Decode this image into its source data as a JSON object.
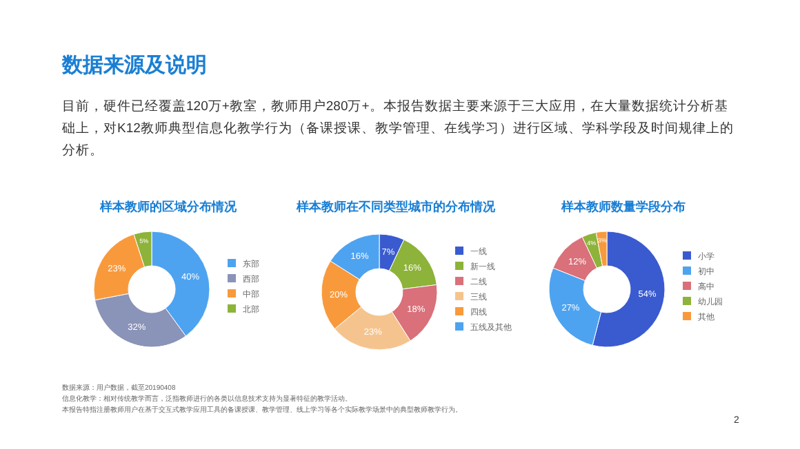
{
  "chart_data": [
    {
      "type": "other",
      "title": "数据来源及说明",
      "annotations": [
        "目前，硬件已经覆盖120万+教室，教师用户280万+。本报告数据主要来源于三大应用，在大量数据统计分析基础上，对K12教师典型信息化教学行为（备课授课、教学管理、在线学习）进行区域、学科学段及时间规律上的分析。",
        "数据来源：用户数据，截至20190408",
        "信息化教学：相对传统教学而言，泛指教师进行的各类以信息技术支持为显著特征的教学活动。",
        "本报告特指注册教师用户在基于交互式教学应用工具的备课授课、教学管理、线上学习等各个实际教学场景中的典型教师教学行为。",
        "2"
      ]
    },
    {
      "type": "donut",
      "title": "样本教师的区域分布情况",
      "categories": [
        "东部",
        "西部",
        "中部",
        "北部"
      ],
      "values": [
        40,
        32,
        23,
        5
      ],
      "value_labels": [
        "40%",
        "32%",
        "23%",
        "5%"
      ],
      "colors": [
        "#4da3f0",
        "#8a93b8",
        "#f89a3c",
        "#8db33a"
      ],
      "legend": "right"
    },
    {
      "type": "donut",
      "title": "样本教师在不同类型城市的分布情况",
      "categories": [
        "一线",
        "新一线",
        "二线",
        "三线",
        "四线",
        "五线及其他"
      ],
      "values": [
        7,
        16,
        18,
        23,
        20,
        16
      ],
      "value_labels": [
        "7%",
        "16%",
        "18%",
        "23%",
        "20%",
        "16%"
      ],
      "colors": [
        "#3a5bcf",
        "#8db33a",
        "#d9707a",
        "#f5c48e",
        "#f89a3c",
        "#4da3f0"
      ],
      "legend": "right"
    },
    {
      "type": "donut",
      "title": "样本教师数量学段分布",
      "categories": [
        "小学",
        "初中",
        "高中",
        "幼儿园",
        "其他"
      ],
      "values": [
        54,
        27,
        12,
        4,
        3
      ],
      "value_labels": [
        "54%",
        "27%",
        "12%",
        "4%",
        "3%"
      ],
      "colors": [
        "#3a5bcf",
        "#4da3f0",
        "#d9707a",
        "#8db33a",
        "#f89a3c"
      ],
      "legend": "right"
    }
  ]
}
